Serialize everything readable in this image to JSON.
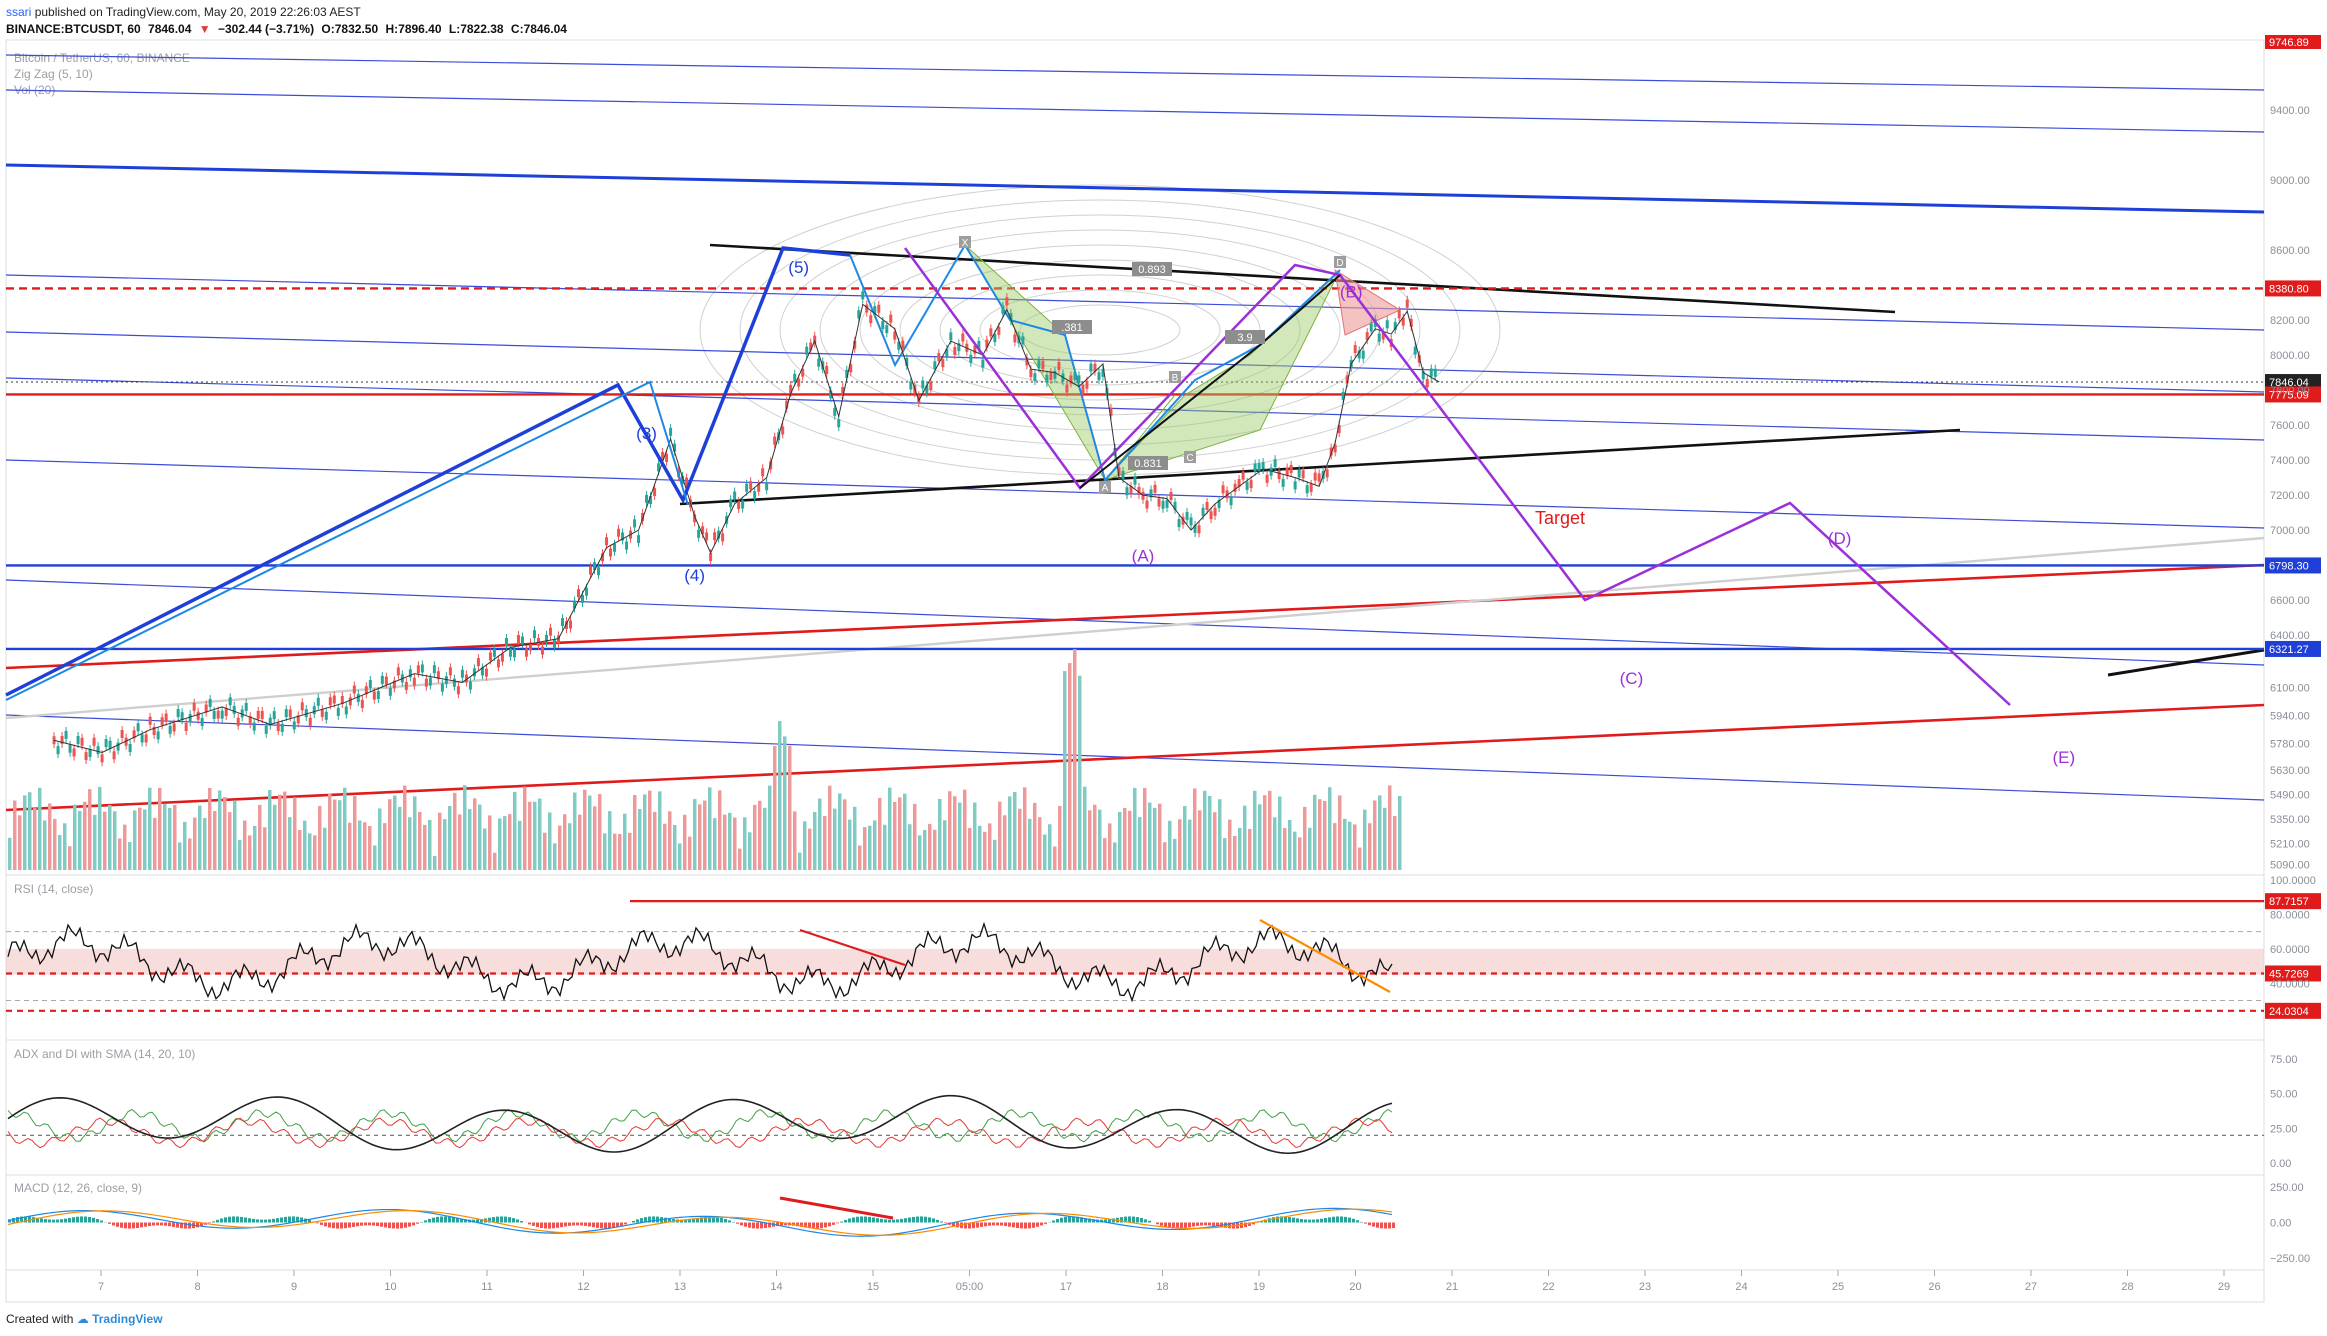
{
  "header": {
    "publisher": "ssari",
    "published_text": "published on TradingView.com, May 20, 2019 22:26:03 AEST",
    "symbol": "BINANCE:BTCUSDT, 60",
    "last": "7846.04",
    "change": "−302.44 (−3.71%)",
    "open": "O:7832.50",
    "high": "H:7896.40",
    "low": "L:7822.38",
    "close": "C:7846.04"
  },
  "footer": {
    "created_with": "Created with",
    "brand": "TradingView"
  },
  "legend": {
    "title": "Bitcoin / TetherUS, 60, BINANCE",
    "zigzag": "Zig Zag (5, 10)",
    "volume": "Vol (20)"
  },
  "colors": {
    "up": "#26a69a",
    "down": "#ef5350",
    "blue": "#1e3fd8",
    "purple": "#9b30d9",
    "red": "#e01b1b",
    "black": "#111111",
    "grey": "#cfcfcf"
  },
  "chart_data": [
    {
      "type": "line",
      "title": "Bitcoin / TetherUS, 60, BINANCE",
      "xlabel": "",
      "ylabel": "",
      "x_ticks": [
        "7",
        "8",
        "9",
        "10",
        "11",
        "12",
        "13",
        "14",
        "15",
        "05:00",
        "17",
        "18",
        "19",
        "20",
        "21",
        "22",
        "23",
        "24",
        "25",
        "26",
        "27",
        "28",
        "29"
      ],
      "y_ticks": [
        9400,
        9000,
        8600,
        8200,
        8000,
        7800,
        7600,
        7400,
        7200,
        7000,
        6600,
        6400,
        6100,
        5940,
        5780,
        5630,
        5490,
        5350,
        5210,
        5090
      ],
      "ylim": [
        5030,
        9800
      ],
      "series": [
        {
          "values": [
            {
              "x": "2019-05-06 12:00",
              "y": 5800
            },
            {
              "x": "2019-05-07 00:00",
              "y": 5730
            },
            {
              "x": "2019-05-07 12:00",
              "y": 5860
            },
            {
              "x": "2019-05-08 06:00",
              "y": 5990
            },
            {
              "x": "2019-05-08 18:00",
              "y": 5890
            },
            {
              "x": "2019-05-09 12:00",
              "y": 6010
            },
            {
              "x": "2019-05-10 06:00",
              "y": 6180
            },
            {
              "x": "2019-05-10 18:00",
              "y": 6130
            },
            {
              "x": "2019-05-11 06:00",
              "y": 6330
            },
            {
              "x": "2019-05-11 18:00",
              "y": 6380
            },
            {
              "x": "2019-05-12 06:00",
              "y": 6900
            },
            {
              "x": "2019-05-12 14:00",
              "y": 7000
            },
            {
              "x": "2019-05-12 22:00",
              "y": 7520
            },
            {
              "x": "2019-05-13 04:00",
              "y": 7080
            },
            {
              "x": "2019-05-13 08:00",
              "y": 6870
            },
            {
              "x": "2019-05-13 14:00",
              "y": 7150
            },
            {
              "x": "2019-05-13 22:00",
              "y": 7300
            },
            {
              "x": "2019-05-14 04:00",
              "y": 7780
            },
            {
              "x": "2019-05-14 10:00",
              "y": 8080
            },
            {
              "x": "2019-05-14 16:00",
              "y": 7650
            },
            {
              "x": "2019-05-14 22:00",
              "y": 8290
            },
            {
              "x": "2019-05-15 06:00",
              "y": 8150
            },
            {
              "x": "2019-05-15 12:00",
              "y": 7740
            },
            {
              "x": "2019-05-15 20:00",
              "y": 8080
            },
            {
              "x": "2019-05-16 04:00",
              "y": 8000
            },
            {
              "x": "2019-05-16 10:00",
              "y": 8260
            },
            {
              "x": "2019-05-16 16:00",
              "y": 7920
            },
            {
              "x": "2019-05-16 22:00",
              "y": 7900
            },
            {
              "x": "2019-05-17 04:00",
              "y": 7820
            },
            {
              "x": "2019-05-17 10:00",
              "y": 7950
            },
            {
              "x": "2019-05-17 14:00",
              "y": 7300
            },
            {
              "x": "2019-05-17 20:00",
              "y": 7200
            },
            {
              "x": "2019-05-18 02:00",
              "y": 7180
            },
            {
              "x": "2019-05-18 08:00",
              "y": 7000
            },
            {
              "x": "2019-05-18 14:00",
              "y": 7150
            },
            {
              "x": "2019-05-18 20:00",
              "y": 7250
            },
            {
              "x": "2019-05-19 02:00",
              "y": 7350
            },
            {
              "x": "2019-05-19 10:00",
              "y": 7300
            },
            {
              "x": "2019-05-19 16:00",
              "y": 7250
            },
            {
              "x": "2019-05-19 20:00",
              "y": 7500
            },
            {
              "x": "2019-05-20 00:00",
              "y": 7950
            },
            {
              "x": "2019-05-20 06:00",
              "y": 8150
            },
            {
              "x": "2019-05-20 10:00",
              "y": 8120
            },
            {
              "x": "2019-05-20 14:00",
              "y": 8250
            },
            {
              "x": "2019-05-20 18:00",
              "y": 7900
            },
            {
              "x": "2019-05-20 22:00",
              "y": 7846
            }
          ]
        }
      ],
      "price_levels": [
        {
          "label": "8380.80",
          "value": 8380.8,
          "color": "#e01b1b",
          "style": "dashed"
        },
        {
          "label": "7846.04",
          "value": 7846.04,
          "color": "#333333",
          "style": "dotted"
        },
        {
          "label": "7775.09",
          "value": 7775.09,
          "color": "#e01b1b",
          "style": "solid"
        },
        {
          "label": "6798.30",
          "value": 6798.3,
          "color": "#1e3fd8",
          "style": "solid"
        },
        {
          "label": "6321.27",
          "value": 6321.27,
          "color": "#1e3fd8",
          "style": "solid"
        }
      ],
      "top_label": "9746.89",
      "wave_labels": [
        {
          "text": "(3)",
          "x": "2019-05-12 16:00",
          "y": 7520,
          "color": "#1e3fd8"
        },
        {
          "text": "(4)",
          "x": "2019-05-13 04:00",
          "y": 6710,
          "color": "#1e3fd8"
        },
        {
          "text": "(5)",
          "x": "2019-05-14 06:00",
          "y": 8470,
          "color": "#1e3fd8"
        },
        {
          "text": "(A)",
          "x": "2019-05-17 20:00",
          "y": 6820,
          "color": "#9b30d9"
        },
        {
          "text": "(B)",
          "x": "2019-05-20 00:00",
          "y": 8330,
          "color": "#9b30d9"
        },
        {
          "text": "(C)",
          "x": "2019-05-22 22:00",
          "y": 6120,
          "color": "#9b30d9"
        },
        {
          "text": "(D)",
          "x": "2019-05-25 02:00",
          "y": 6920,
          "color": "#9b30d9"
        },
        {
          "text": "(E)",
          "x": "2019-05-27 10:00",
          "y": 5670,
          "color": "#9b30d9"
        }
      ],
      "target_label": "Target",
      "harmonic_labels": [
        "X",
        "B",
        "C",
        "D",
        "A"
      ],
      "fib_labels": [
        "0.893",
        ".381",
        "0.831",
        "3.9"
      ]
    },
    {
      "type": "line",
      "title": "RSI (14, close)",
      "y_ticks": [
        100,
        80,
        60,
        40
      ],
      "ylim": [
        10,
        100
      ],
      "levels": [
        {
          "label": "87.7157",
          "value": 87.7157,
          "color": "#e01b1b"
        },
        {
          "label": "45.7269",
          "value": 45.7269,
          "color": "#e01b1b"
        },
        {
          "label": "24.0304",
          "value": 24.0304,
          "color": "#e01b1b"
        }
      ]
    },
    {
      "type": "line",
      "title": "ADX and DI with SMA (14, 20, 10)",
      "y_ticks": [
        75,
        50,
        25,
        0
      ],
      "ylim": [
        -5,
        85
      ]
    },
    {
      "type": "bar",
      "title": "MACD (12, 26, close, 9)",
      "y_ticks": [
        250,
        0,
        -250
      ],
      "ylim": [
        -300,
        300
      ]
    }
  ],
  "axis_labels": {
    "main": [
      "9746.89",
      "9400.00",
      "9000.00",
      "8600.00",
      "8200.00",
      "8000.00",
      "7800.00",
      "7600.00",
      "7400.00",
      "7200.00",
      "7000.00",
      "6600.00",
      "6400.00",
      "6100.00",
      "5940.00",
      "5780.00",
      "5630.00",
      "5490.00",
      "5350.00",
      "5210.00",
      "5090.00"
    ],
    "rsi": [
      "100.0000",
      "80.0000",
      "60.0000",
      "40.0000"
    ],
    "adx": [
      "75.00",
      "50.00",
      "25.00",
      "0.00"
    ],
    "macd": [
      "250.00",
      "0.00",
      "−250.00"
    ]
  }
}
